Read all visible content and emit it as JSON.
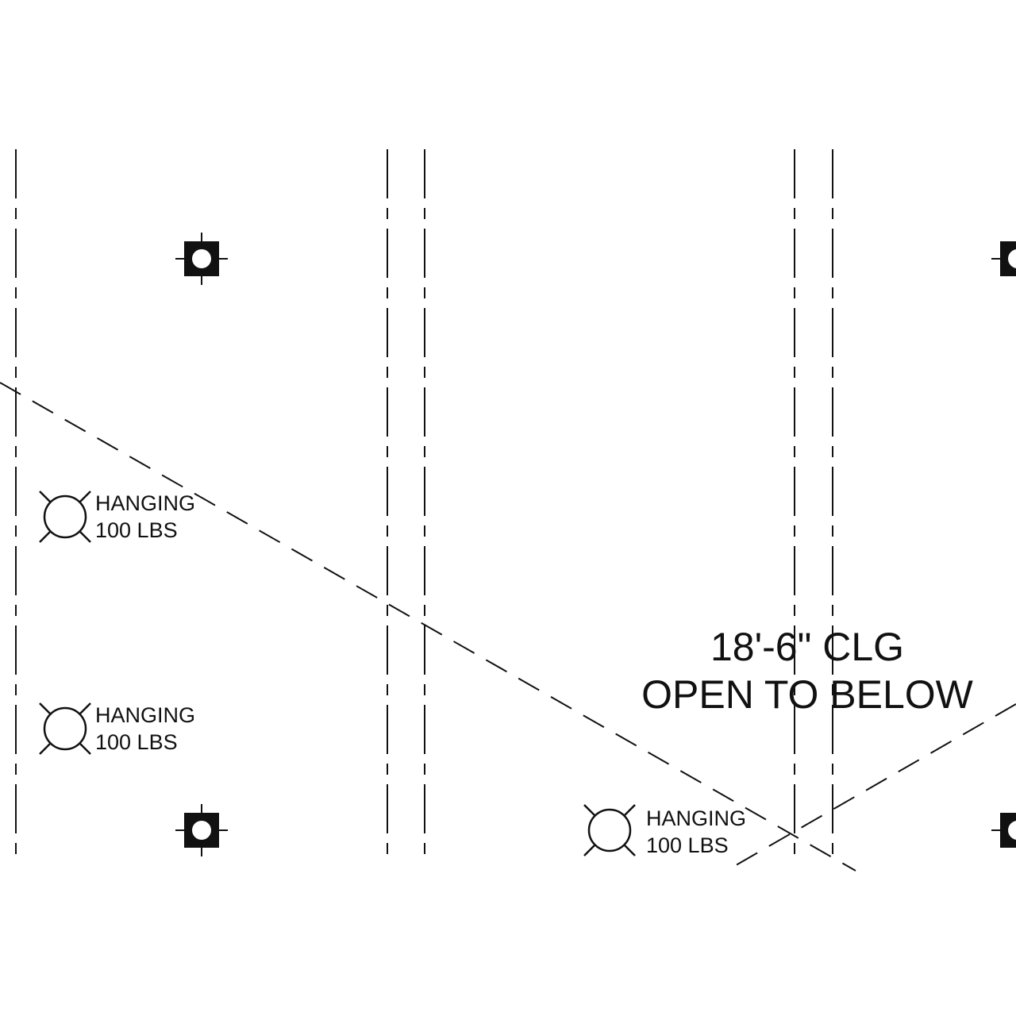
{
  "drawing": {
    "line_color": "#111111",
    "background": "#ffffff",
    "hanging_points": [
      {
        "icon": "hanging-point-icon",
        "label_line1": "HANGING",
        "label_line2": "100 LBS"
      },
      {
        "icon": "hanging-point-icon",
        "label_line1": "HANGING",
        "label_line2": "100 LBS"
      },
      {
        "icon": "hanging-point-icon",
        "label_line1": "HANGING",
        "label_line2": "100 LBS"
      }
    ],
    "ceiling_note": {
      "line1": "18'-6\" CLG",
      "line2": "OPEN TO BELOW"
    },
    "column_symbols": [
      "column-icon",
      "column-icon",
      "column-icon",
      "column-icon"
    ]
  }
}
